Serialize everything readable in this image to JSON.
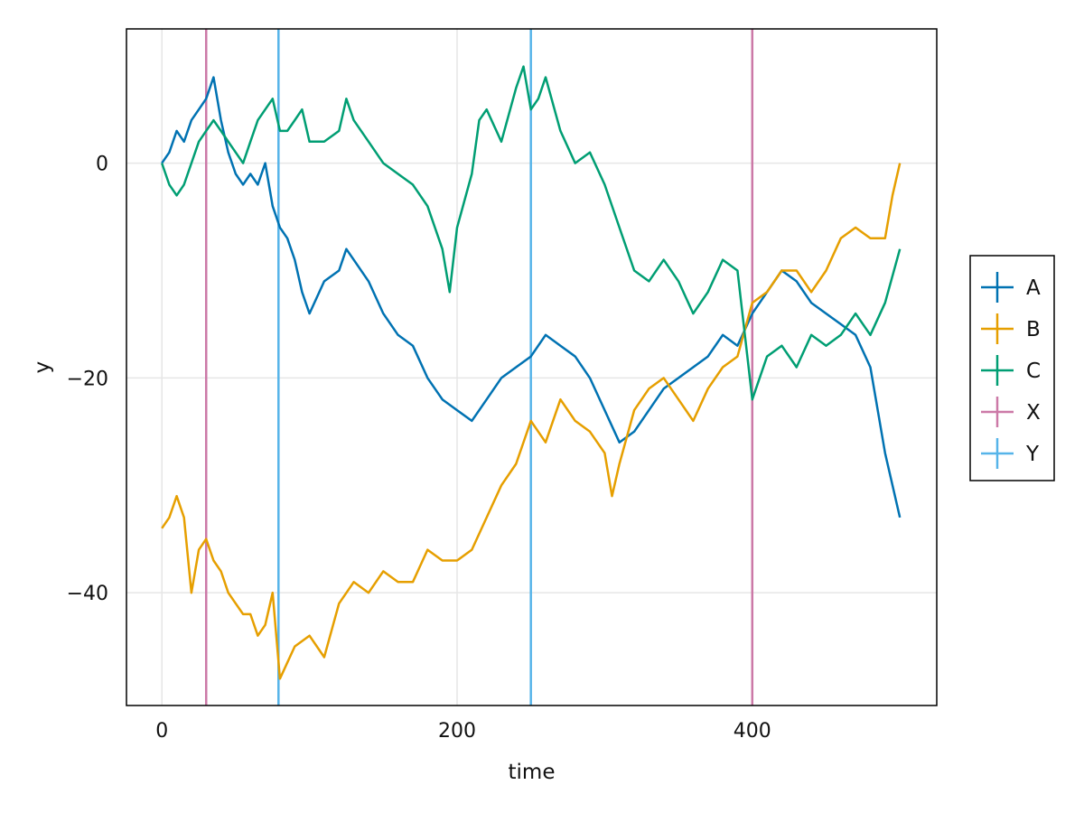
{
  "chart_data": {
    "type": "line",
    "title": "",
    "xlabel": "time",
    "ylabel": "y",
    "xlim": [
      -24,
      525
    ],
    "ylim": [
      -50.5,
      12.5
    ],
    "xticks": [
      0,
      200,
      400
    ],
    "yticks": [
      0,
      -20,
      -40
    ],
    "xtick_labels": [
      "0",
      "200",
      "400"
    ],
    "ytick_labels": [
      "0",
      "−20",
      "−40"
    ],
    "grid": true,
    "legend_position": "right",
    "series": [
      {
        "name": "A",
        "color": "#0072b2",
        "x": [
          0,
          5,
          10,
          15,
          20,
          25,
          30,
          35,
          40,
          45,
          50,
          55,
          60,
          65,
          70,
          75,
          80,
          85,
          90,
          95,
          100,
          110,
          120,
          125,
          130,
          140,
          150,
          160,
          170,
          180,
          190,
          200,
          210,
          220,
          230,
          240,
          250,
          260,
          270,
          280,
          290,
          300,
          310,
          320,
          330,
          340,
          350,
          360,
          370,
          380,
          390,
          400,
          410,
          420,
          430,
          440,
          450,
          460,
          470,
          480,
          490,
          500
        ],
        "values": [
          0,
          1,
          3,
          2,
          4,
          5,
          6,
          8,
          4,
          1,
          -1,
          -2,
          -1,
          -2,
          0,
          -4,
          -6,
          -7,
          -9,
          -12,
          -14,
          -11,
          -10,
          -8,
          -9,
          -11,
          -14,
          -16,
          -17,
          -20,
          -22,
          -23,
          -24,
          -22,
          -20,
          -19,
          -18,
          -16,
          -17,
          -18,
          -20,
          -23,
          -26,
          -25,
          -23,
          -21,
          -20,
          -19,
          -18,
          -16,
          -17,
          -14,
          -12,
          -10,
          -11,
          -13,
          -14,
          -15,
          -16,
          -19,
          -27,
          -33
        ]
      },
      {
        "name": "B",
        "color": "#e69f00",
        "x": [
          0,
          5,
          10,
          15,
          20,
          25,
          30,
          35,
          40,
          45,
          50,
          55,
          60,
          65,
          70,
          75,
          80,
          90,
          100,
          110,
          120,
          130,
          140,
          150,
          160,
          170,
          180,
          190,
          200,
          210,
          220,
          230,
          240,
          250,
          260,
          270,
          280,
          290,
          300,
          305,
          310,
          320,
          330,
          340,
          350,
          360,
          370,
          380,
          390,
          400,
          410,
          420,
          430,
          440,
          450,
          460,
          470,
          480,
          490,
          495,
          500
        ],
        "values": [
          -34,
          -33,
          -31,
          -33,
          -40,
          -36,
          -35,
          -37,
          -38,
          -40,
          -41,
          -42,
          -42,
          -44,
          -43,
          -40,
          -48,
          -45,
          -44,
          -46,
          -41,
          -39,
          -40,
          -38,
          -39,
          -39,
          -36,
          -37,
          -37,
          -36,
          -33,
          -30,
          -28,
          -24,
          -26,
          -22,
          -24,
          -25,
          -27,
          -31,
          -28,
          -23,
          -21,
          -20,
          -22,
          -24,
          -21,
          -19,
          -18,
          -13,
          -12,
          -10,
          -10,
          -12,
          -10,
          -7,
          -6,
          -7,
          -7,
          -3,
          0
        ]
      },
      {
        "name": "C",
        "color": "#009e73",
        "x": [
          0,
          5,
          10,
          15,
          20,
          25,
          30,
          35,
          40,
          45,
          50,
          55,
          60,
          65,
          70,
          75,
          80,
          85,
          90,
          95,
          100,
          110,
          120,
          125,
          130,
          140,
          150,
          160,
          170,
          180,
          190,
          195,
          200,
          210,
          215,
          220,
          230,
          240,
          245,
          250,
          255,
          260,
          270,
          280,
          290,
          300,
          310,
          320,
          330,
          340,
          350,
          360,
          370,
          380,
          390,
          400,
          410,
          420,
          430,
          440,
          450,
          460,
          470,
          480,
          490,
          500
        ],
        "values": [
          0,
          -2,
          -3,
          -2,
          0,
          2,
          3,
          4,
          3,
          2,
          1,
          0,
          2,
          4,
          5,
          6,
          3,
          3,
          4,
          5,
          2,
          2,
          3,
          6,
          4,
          2,
          0,
          -1,
          -2,
          -4,
          -8,
          -12,
          -6,
          -1,
          4,
          5,
          2,
          7,
          9,
          5,
          6,
          8,
          3,
          0,
          1,
          -2,
          -6,
          -10,
          -11,
          -9,
          -11,
          -14,
          -12,
          -9,
          -10,
          -22,
          -18,
          -17,
          -19,
          -16,
          -17,
          -16,
          -14,
          -16,
          -13,
          -8
        ]
      },
      {
        "name": "X",
        "color": "#cc79a7",
        "vline": [
          30,
          400
        ]
      },
      {
        "name": "Y",
        "color": "#56b4e9",
        "vline": [
          79,
          250
        ]
      }
    ]
  }
}
